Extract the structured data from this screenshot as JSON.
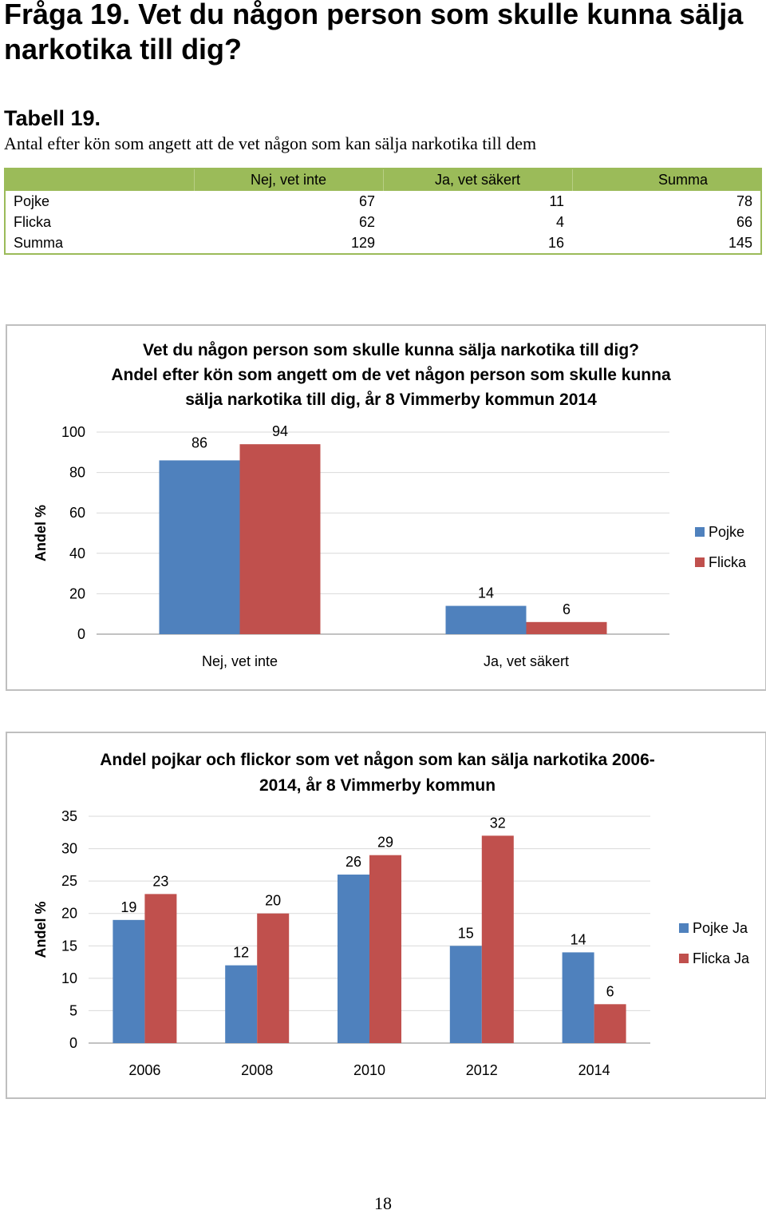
{
  "page": {
    "question": "Fråga 19. Vet du någon person som skulle kunna sälja narkotika till dig?",
    "table_title": "Tabell 19.",
    "table_caption": "Antal efter kön som angett att de vet någon som kan sälja narkotika till dem",
    "page_number": "18"
  },
  "table": {
    "headers": [
      "",
      "Nej, vet inte",
      "Ja, vet säkert",
      "Summa"
    ],
    "rows": [
      [
        "Pojke",
        "67",
        "11",
        "78"
      ],
      [
        "Flicka",
        "62",
        "4",
        "66"
      ],
      [
        "Summa",
        "129",
        "16",
        "145"
      ]
    ]
  },
  "colors": {
    "pojke": "#4f81bd",
    "flicka": "#c0504d",
    "table_header": "#9bbb59",
    "frame": "#bfbfbf",
    "grid": "#d9d9d9"
  },
  "chart_data": [
    {
      "type": "bar",
      "title_lines": [
        "Vet du någon person som skulle kunna sälja narkotika till dig?",
        "Andel efter kön som angett om de vet någon person som skulle kunna",
        "sälja narkotika till dig, år 8 Vimmerby kommun 2014"
      ],
      "ylabel": "Andel %",
      "xlabel": "",
      "categories": [
        "Nej, vet inte",
        "Ja, vet säkert"
      ],
      "series": [
        {
          "name": "Pojke",
          "values": [
            86,
            14
          ]
        },
        {
          "name": "Flicka",
          "values": [
            94,
            6
          ]
        }
      ],
      "ylim": [
        0,
        100
      ],
      "yticks": [
        "0",
        "20",
        "40",
        "60",
        "80",
        "100"
      ],
      "legend": "right",
      "grid": true
    },
    {
      "type": "bar",
      "title_lines": [
        "Andel pojkar och flickor som vet någon som kan sälja narkotika 2006-",
        "2014, år 8 Vimmerby kommun"
      ],
      "ylabel": "Andel %",
      "xlabel": "",
      "categories": [
        "2006",
        "2008",
        "2010",
        "2012",
        "2014"
      ],
      "series": [
        {
          "name": "Pojke Ja",
          "values": [
            19,
            12,
            26,
            15,
            14
          ]
        },
        {
          "name": "Flicka Ja",
          "values": [
            23,
            20,
            29,
            32,
            6
          ]
        }
      ],
      "ylim": [
        0,
        35
      ],
      "yticks": [
        "0",
        "5",
        "10",
        "15",
        "20",
        "25",
        "30",
        "35"
      ],
      "legend": "right",
      "grid": true
    }
  ]
}
